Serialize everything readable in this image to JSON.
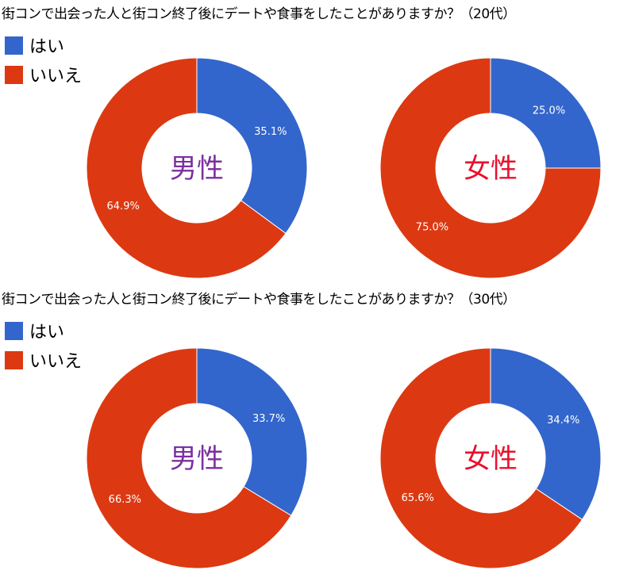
{
  "colors": {
    "yes": "#3366cc",
    "no": "#dc3912",
    "male": "#7b2fa0",
    "female": "#e8112d"
  },
  "legend": [
    {
      "label": "はい",
      "color": "#3366cc"
    },
    {
      "label": "いいえ",
      "color": "#dc3912"
    }
  ],
  "chart_data": [
    {
      "type": "pie",
      "title": "街コンで出会った人と街コン終了後にデートや食事をしたことがありますか？（20代）",
      "charts": [
        {
          "center_label": "男性",
          "slices": [
            {
              "name": "はい",
              "value": 35.1,
              "label": "35.1%"
            },
            {
              "name": "いいえ",
              "value": 64.9,
              "label": "64.9%"
            }
          ]
        },
        {
          "center_label": "女性",
          "slices": [
            {
              "name": "はい",
              "value": 25.0,
              "label": "25.0%"
            },
            {
              "name": "いいえ",
              "value": 75.0,
              "label": "75.0%"
            }
          ]
        }
      ]
    },
    {
      "type": "pie",
      "title": "街コンで出会った人と街コン終了後にデートや食事をしたことがありますか？（30代）",
      "charts": [
        {
          "center_label": "男性",
          "slices": [
            {
              "name": "はい",
              "value": 33.7,
              "label": "33.7%"
            },
            {
              "name": "いいえ",
              "value": 66.3,
              "label": "66.3%"
            }
          ]
        },
        {
          "center_label": "女性",
          "slices": [
            {
              "name": "はい",
              "value": 34.4,
              "label": "34.4%"
            },
            {
              "name": "いいえ",
              "value": 65.6,
              "label": "65.6%"
            }
          ]
        }
      ]
    }
  ]
}
